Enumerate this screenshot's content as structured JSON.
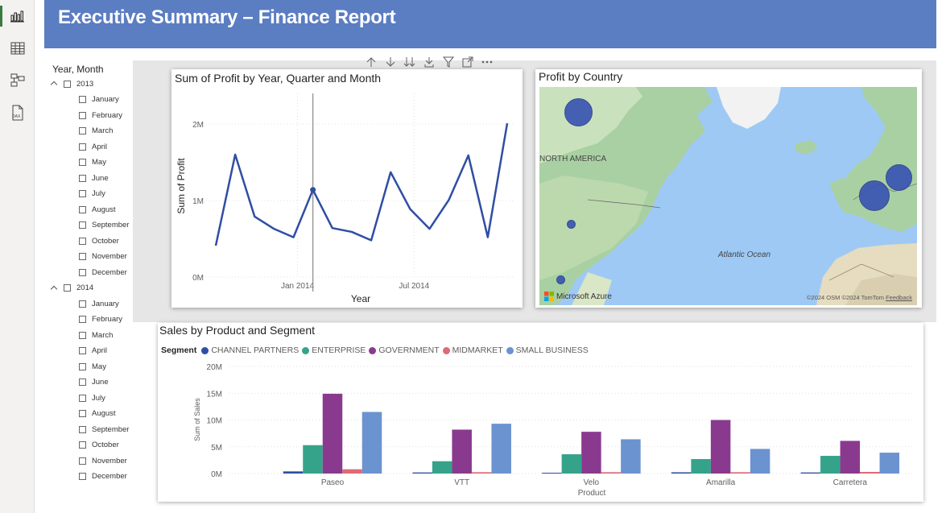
{
  "report": {
    "title": "Executive Summary – Finance Report"
  },
  "rail": {
    "items": [
      {
        "name": "report-view-icon",
        "active": true
      },
      {
        "name": "table-view-icon",
        "active": false
      },
      {
        "name": "model-view-icon",
        "active": false
      },
      {
        "name": "dax-query-icon",
        "active": false
      }
    ]
  },
  "slicer": {
    "title": "Year, Month",
    "years": [
      {
        "label": "2013",
        "months": [
          "January",
          "February",
          "March",
          "April",
          "May",
          "June",
          "July",
          "August",
          "September",
          "October",
          "November",
          "December"
        ]
      },
      {
        "label": "2014",
        "months": [
          "January",
          "February",
          "March",
          "April",
          "May",
          "June",
          "July",
          "August",
          "September",
          "October",
          "November",
          "December"
        ]
      }
    ]
  },
  "toolbar": {
    "items": [
      "drill-up-icon",
      "drill-down-icon",
      "expand-next-level-icon",
      "expand-hierarchy-icon",
      "filter-icon",
      "focus-mode-icon",
      "more-options-icon"
    ]
  },
  "line_chart": {
    "title": "Sum of Profit by Year, Quarter and Month",
    "chart_data": {
      "type": "line",
      "title": "Sum of Profit by Year, Quarter and Month",
      "xlabel": "Year",
      "ylabel": "Sum of Profit",
      "x_tick_labels": [
        "Jan 2014",
        "Jul 2014"
      ],
      "y_tick_labels": [
        "0M",
        "1M",
        "2M"
      ],
      "ylim": [
        0,
        2400000
      ],
      "x": [
        "Sep 2013",
        "Oct 2013",
        "Nov 2013",
        "Dec 2013",
        "Jan 2014",
        "Feb 2014",
        "Mar 2014",
        "Apr 2014",
        "May 2014",
        "Jun 2014",
        "Jul 2014",
        "Aug 2014",
        "Sep 2014",
        "Oct 2014",
        "Nov 2014",
        "Dec 2014"
      ],
      "values": [
        410000,
        1600000,
        790000,
        630000,
        520000,
        1140000,
        640000,
        590000,
        480000,
        1370000,
        890000,
        630000,
        1010000,
        1590000,
        520000,
        2010000
      ],
      "highlight_index": 5,
      "color": "#2f4ea3",
      "grid": true
    }
  },
  "map": {
    "title": "Profit by Country",
    "labels": {
      "region": "NORTH AMERICA",
      "ocean": "Atlantic Ocean"
    },
    "attribution": {
      "brand": "Microsoft Azure",
      "copyright": "©2024 OSM  ©2024 TomTom",
      "feedback": "Feedback"
    }
  },
  "bar_chart": {
    "title": "Sales by Product and Segment",
    "legend_title": "Segment",
    "chart_data": {
      "type": "bar",
      "title": "Sales by Product and Segment",
      "xlabel": "Product",
      "ylabel": "Sum of Sales",
      "y_tick_labels": [
        "0M",
        "5M",
        "10M",
        "15M",
        "20M"
      ],
      "ylim": [
        0,
        20000000
      ],
      "categories": [
        "Paseo",
        "VTT",
        "Velo",
        "Amarilla",
        "Carretera"
      ],
      "series": [
        {
          "name": "CHANNEL PARTNERS",
          "color": "#2f4ea3",
          "values": [
            400000,
            200000,
            150000,
            230000,
            200000
          ]
        },
        {
          "name": "ENTERPRISE",
          "color": "#35a38a",
          "values": [
            5300000,
            2300000,
            3600000,
            2700000,
            3300000
          ]
        },
        {
          "name": "GOVERNMENT",
          "color": "#8a3a8e",
          "values": [
            14900000,
            8200000,
            7800000,
            10000000,
            6100000
          ]
        },
        {
          "name": "MIDMARKET",
          "color": "#df6a77",
          "values": [
            800000,
            250000,
            250000,
            250000,
            300000
          ]
        },
        {
          "name": "SMALL BUSINESS",
          "color": "#6b93cf",
          "values": [
            11500000,
            9300000,
            6400000,
            4600000,
            3900000
          ]
        }
      ],
      "grid": true,
      "legend_position": "top-left"
    }
  }
}
